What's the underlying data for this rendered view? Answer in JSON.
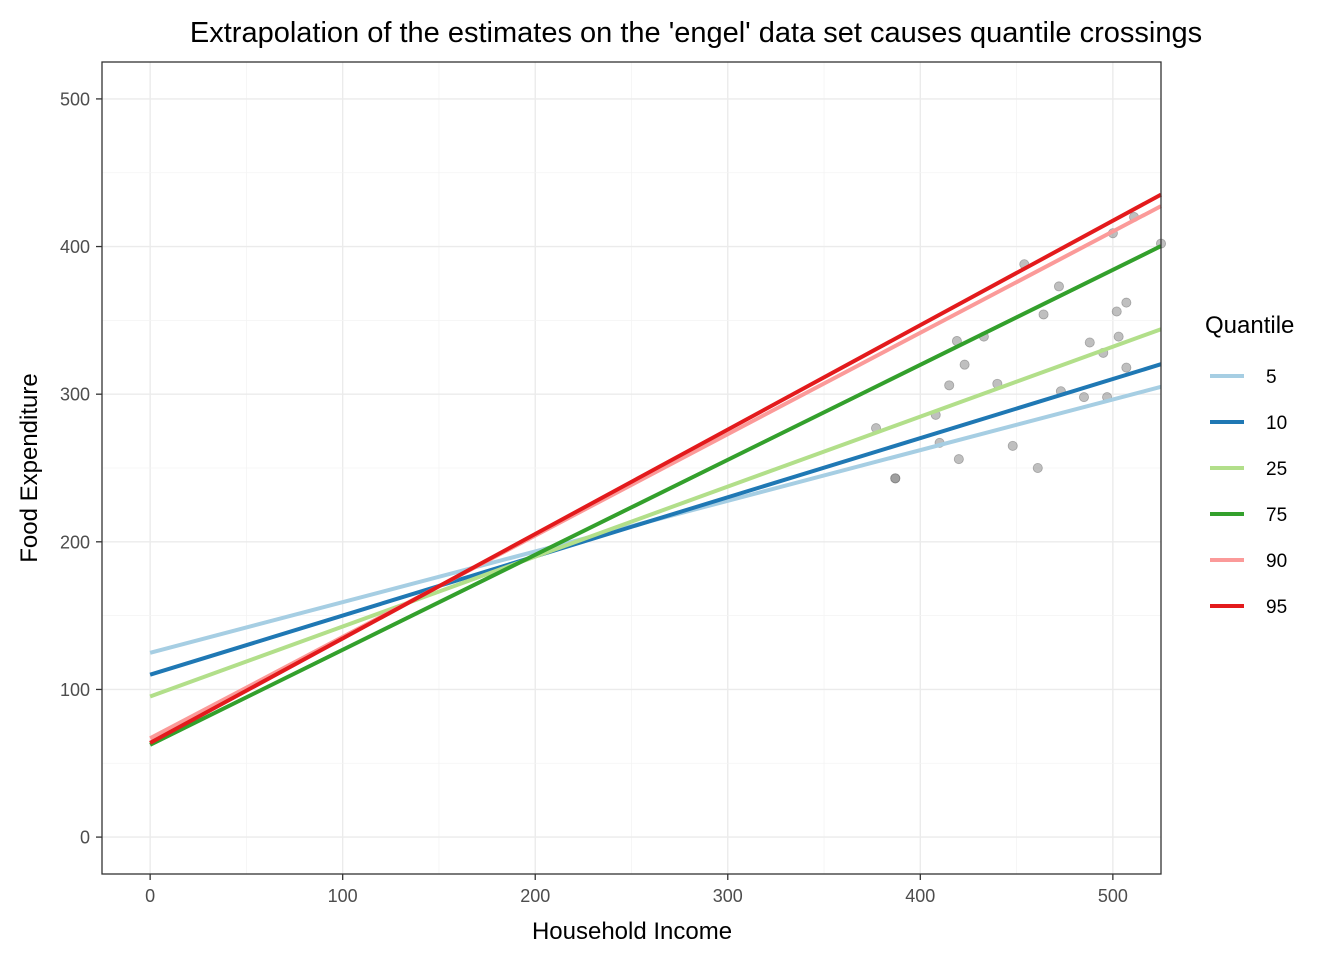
{
  "chart_data": {
    "type": "line",
    "title": "Extrapolation of the estimates on the 'engel' data set causes quantile crossings",
    "xlabel": "Household Income",
    "ylabel": "Food Expenditure",
    "xlim": [
      -25,
      525
    ],
    "ylim": [
      -25,
      525
    ],
    "x_ticks": [
      0,
      100,
      200,
      300,
      400,
      500
    ],
    "y_ticks": [
      0,
      100,
      200,
      300,
      400,
      500
    ],
    "x_tick_labels": [
      "0",
      "100",
      "200",
      "300",
      "400",
      "500"
    ],
    "y_tick_labels": [
      "0",
      "100",
      "200",
      "300",
      "400",
      "500"
    ],
    "grid": true,
    "legend": {
      "title": "Quantile",
      "position": "right"
    },
    "series": [
      {
        "name": "5",
        "color": "#a6cee3",
        "x": [
          0,
          525
        ],
        "y": [
          124.8,
          305.0
        ]
      },
      {
        "name": "10",
        "color": "#1f78b4",
        "x": [
          0,
          525
        ],
        "y": [
          110.0,
          320.3
        ]
      },
      {
        "name": "25",
        "color": "#b2df8a",
        "x": [
          0,
          525
        ],
        "y": [
          95.2,
          344.0
        ]
      },
      {
        "name": "75",
        "color": "#33a02c",
        "x": [
          0,
          525
        ],
        "y": [
          62.5,
          400.3
        ]
      },
      {
        "name": "90",
        "color": "#fb9a99",
        "x": [
          0,
          525
        ],
        "y": [
          66.9,
          427.4
        ]
      },
      {
        "name": "95",
        "color": "#e31a1c",
        "x": [
          0,
          525
        ],
        "y": [
          63.8,
          435.2
        ]
      }
    ],
    "points": [
      {
        "x": 377,
        "y": 277
      },
      {
        "x": 387,
        "y": 243
      },
      {
        "x": 387,
        "y": 243
      },
      {
        "x": 408,
        "y": 286
      },
      {
        "x": 410,
        "y": 267
      },
      {
        "x": 415,
        "y": 306
      },
      {
        "x": 419,
        "y": 336
      },
      {
        "x": 420,
        "y": 256
      },
      {
        "x": 423,
        "y": 320
      },
      {
        "x": 433,
        "y": 339
      },
      {
        "x": 440,
        "y": 307
      },
      {
        "x": 448,
        "y": 265
      },
      {
        "x": 454,
        "y": 388
      },
      {
        "x": 461,
        "y": 250
      },
      {
        "x": 464,
        "y": 354
      },
      {
        "x": 472,
        "y": 373
      },
      {
        "x": 473,
        "y": 302
      },
      {
        "x": 485,
        "y": 298
      },
      {
        "x": 488,
        "y": 335
      },
      {
        "x": 495,
        "y": 328
      },
      {
        "x": 497,
        "y": 298
      },
      {
        "x": 500,
        "y": 409
      },
      {
        "x": 502,
        "y": 356
      },
      {
        "x": 503,
        "y": 339
      },
      {
        "x": 507,
        "y": 362
      },
      {
        "x": 507,
        "y": 318
      },
      {
        "x": 511,
        "y": 420
      },
      {
        "x": 525,
        "y": 402
      }
    ]
  }
}
